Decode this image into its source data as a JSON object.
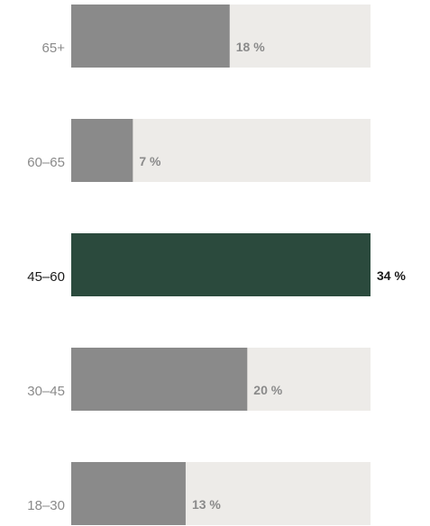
{
  "chart_data": {
    "type": "bar",
    "orientation": "horizontal",
    "categories": [
      "65+",
      "60–65",
      "45–60",
      "30–45",
      "18–30"
    ],
    "values": [
      18,
      7,
      34,
      20,
      13
    ],
    "value_labels": [
      "18 %",
      "7 %",
      "34 %",
      "20 %",
      "13 %"
    ],
    "highlight": "45–60",
    "xlim": [
      0,
      34
    ],
    "title": "",
    "xlabel": "",
    "ylabel": "",
    "grid": false,
    "colors": {
      "bar": "#8a8a8a",
      "highlight_bar": "#2b4a3d",
      "track": "#edebe8",
      "label": "#8a8a8a",
      "highlight_label": "#1a1a1a"
    }
  }
}
